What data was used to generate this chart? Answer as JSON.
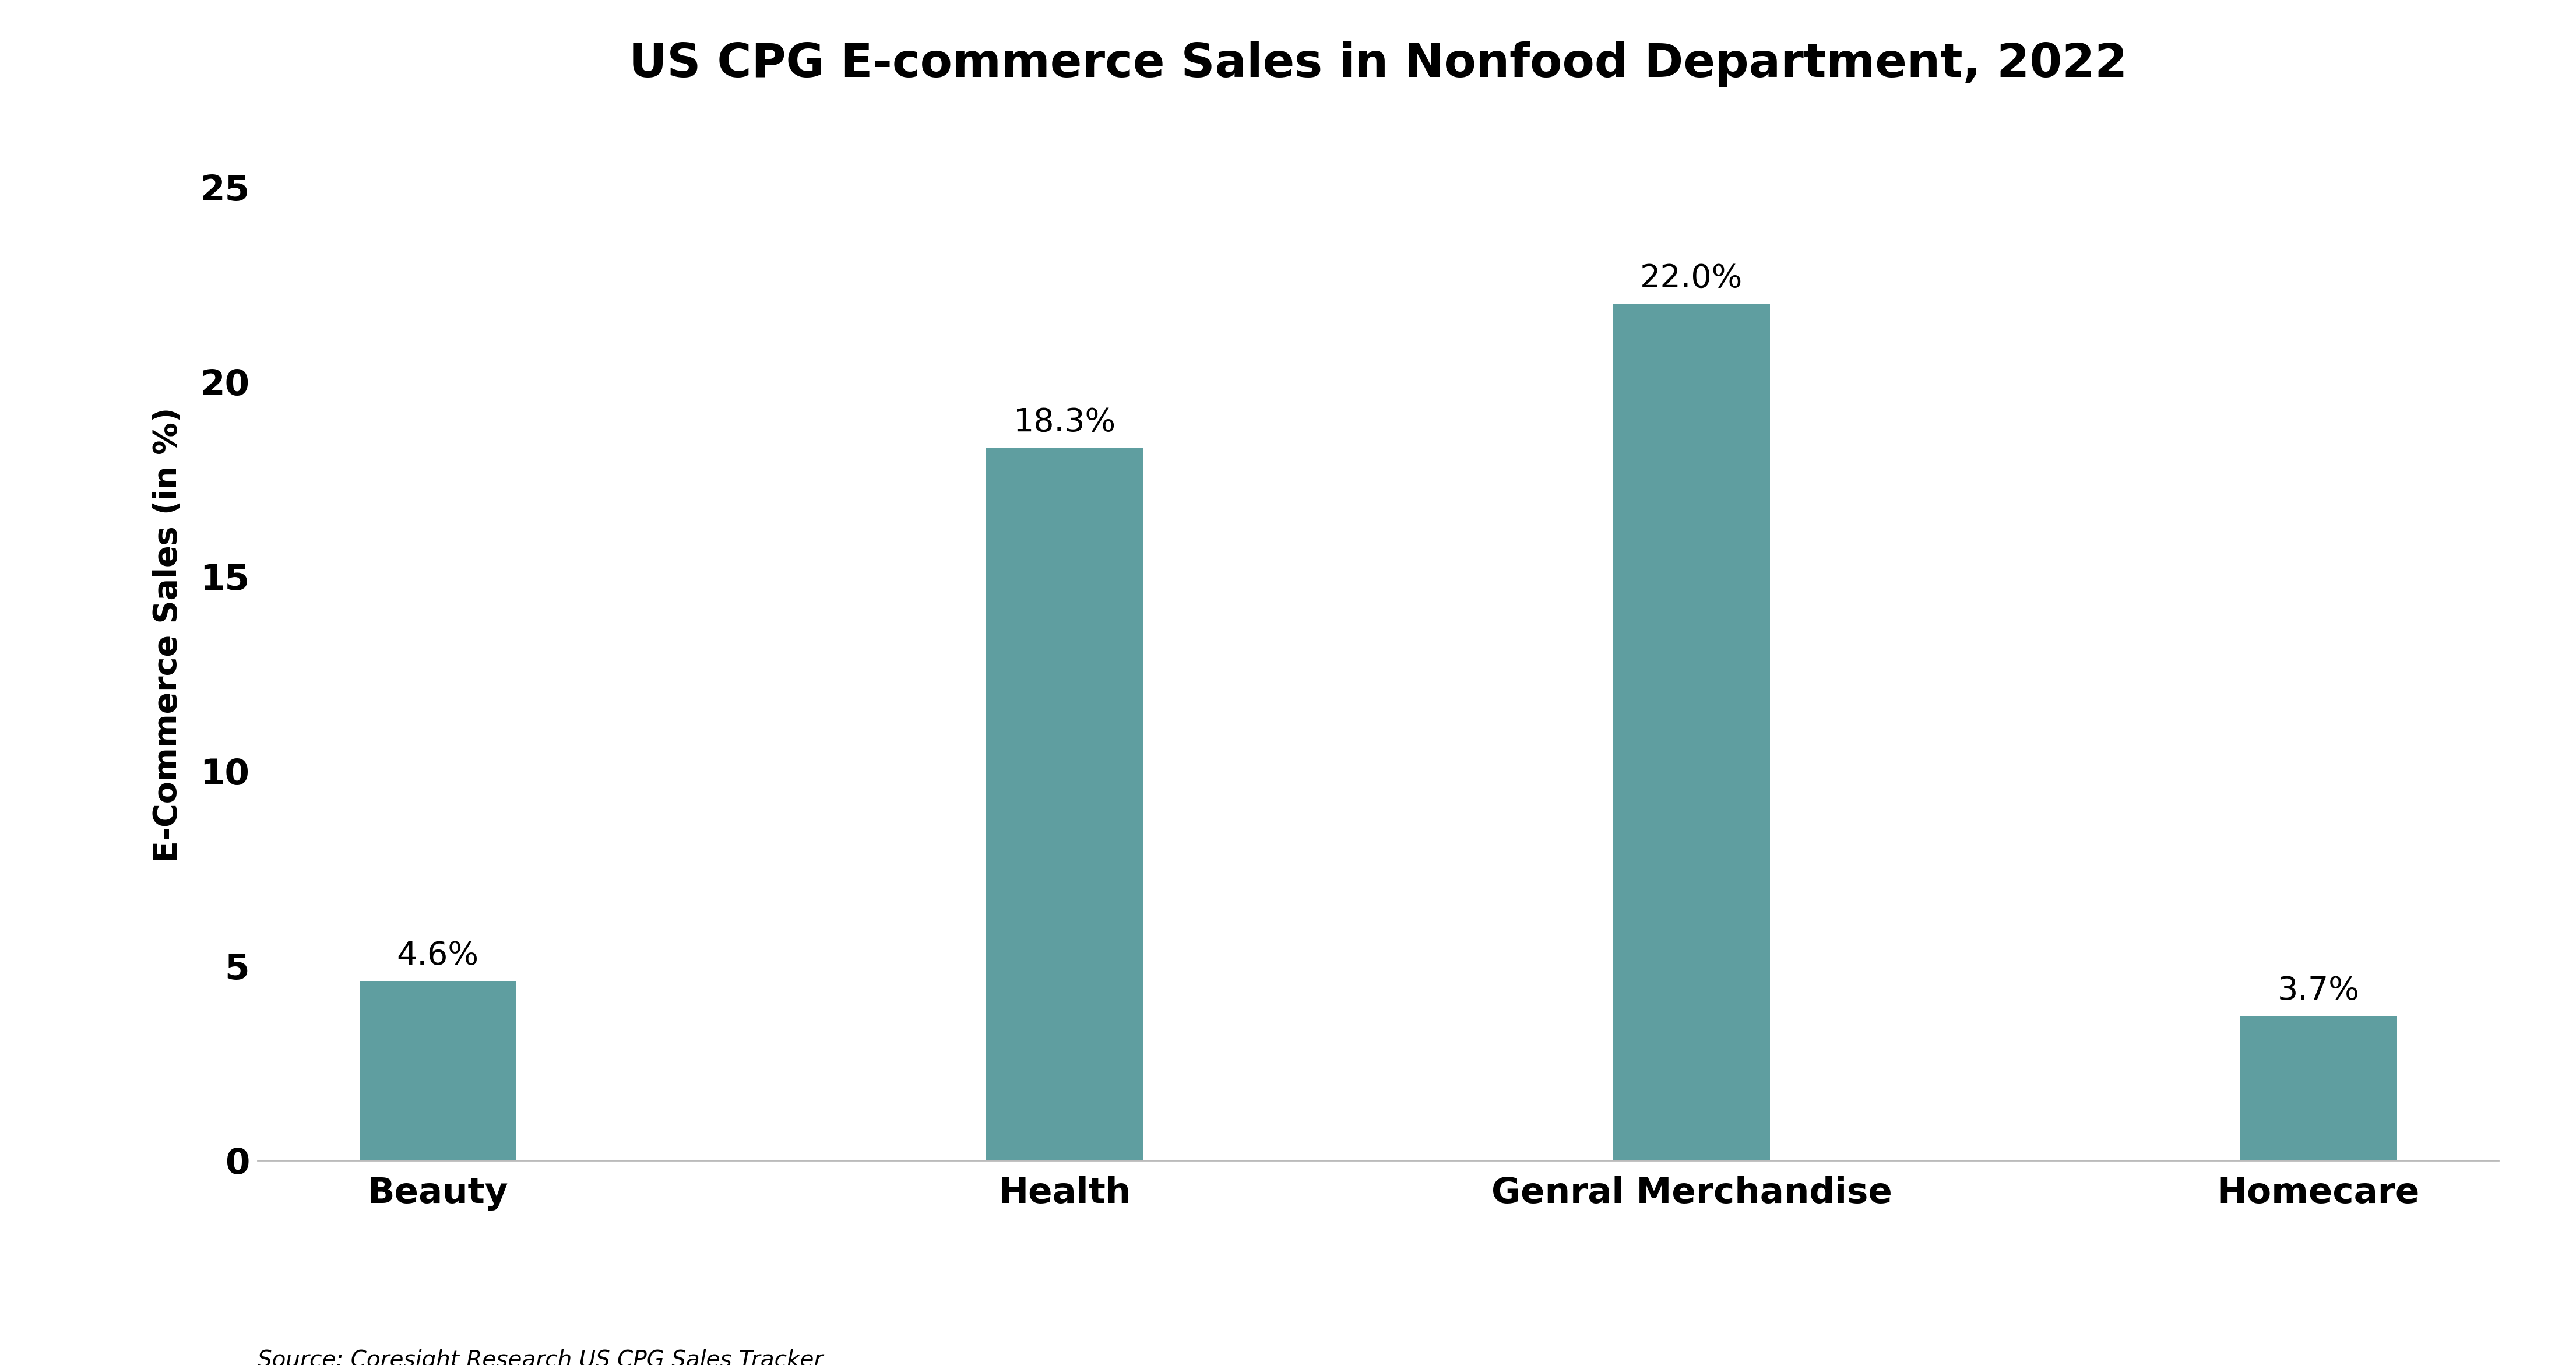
{
  "title": "US CPG E-commerce Sales in Nonfood Department, 2022",
  "categories": [
    "Beauty",
    "Health",
    "Genral Merchandise",
    "Homecare"
  ],
  "values": [
    4.6,
    18.3,
    22.0,
    3.7
  ],
  "bar_color": "#5f9ea0",
  "ylabel": "E-Commerce Sales (in %)",
  "ylim": [
    0,
    27
  ],
  "yticks": [
    0,
    5,
    10,
    15,
    20,
    25
  ],
  "ytick_labels": [
    "0",
    "5",
    "10",
    "15",
    "20",
    "25"
  ],
  "source_text": "Source: Coresight Research US CPG Sales Tracker",
  "title_fontsize": 58,
  "label_fontsize": 40,
  "tick_fontsize": 44,
  "bar_label_fontsize": 40,
  "source_fontsize": 28,
  "background_color": "#ffffff",
  "bar_width": 0.25
}
